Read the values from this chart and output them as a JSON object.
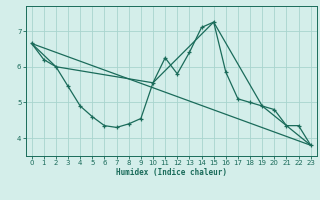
{
  "xlabel": "Humidex (Indice chaleur)",
  "background_color": "#d4eeea",
  "grid_color": "#a8d4ce",
  "line_color": "#1a6b5a",
  "xlim": [
    -0.5,
    23.5
  ],
  "ylim": [
    3.5,
    7.7
  ],
  "yticks": [
    4,
    5,
    6,
    7
  ],
  "xticks": [
    0,
    1,
    2,
    3,
    4,
    5,
    6,
    7,
    8,
    9,
    10,
    11,
    12,
    13,
    14,
    15,
    16,
    17,
    18,
    19,
    20,
    21,
    22,
    23
  ],
  "line1_x": [
    0,
    1,
    2,
    3,
    4,
    5,
    6,
    7,
    8,
    9,
    10,
    11,
    12,
    13,
    14,
    15,
    16,
    17,
    18,
    19,
    20,
    21,
    22,
    23
  ],
  "line1_y": [
    6.65,
    6.2,
    6.0,
    5.45,
    4.9,
    4.6,
    4.35,
    4.3,
    4.4,
    4.55,
    5.55,
    6.25,
    5.8,
    6.4,
    7.1,
    7.25,
    5.85,
    5.1,
    5.0,
    4.9,
    4.8,
    4.35,
    4.35,
    3.8
  ],
  "line2_x": [
    0,
    2,
    10,
    15,
    19,
    23
  ],
  "line2_y": [
    6.65,
    6.0,
    5.55,
    7.25,
    4.9,
    3.8
  ],
  "line3_x": [
    0,
    23
  ],
  "line3_y": [
    6.65,
    3.8
  ]
}
